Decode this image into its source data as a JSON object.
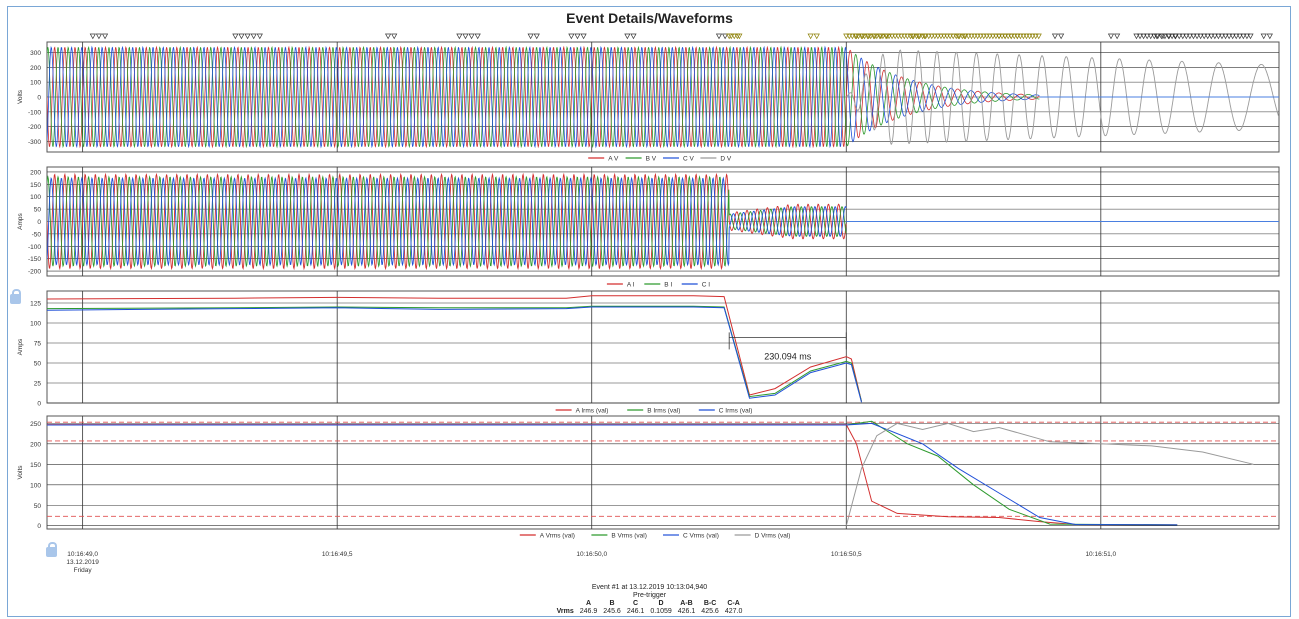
{
  "title": "Event Details/Waveforms",
  "colors": {
    "A": "#d32f2f",
    "B": "#2e9a2e",
    "C": "#1f4fd8",
    "D": "#9a9a9a",
    "threshold": "#e05050",
    "blue_line": "#4a7fe0"
  },
  "event_markers_icon": "triangle-down-icon",
  "lock_icon": "lock-icon",
  "x_axis": {
    "ticks": [
      {
        "t": 0.0,
        "label": "10:16:49,0"
      },
      {
        "t": 0.5,
        "label": "10:16:49,5"
      },
      {
        "t": 1.0,
        "label": "10:16:50,0"
      },
      {
        "t": 1.5,
        "label": "10:16:50,5"
      },
      {
        "t": 2.0,
        "label": "10:16:51,0"
      }
    ],
    "first_date": "13.12.2019",
    "first_day": "Friday",
    "range": [
      -0.07,
      2.35
    ]
  },
  "chart_data": [
    {
      "type": "line",
      "panel": "voltage-waveforms",
      "ylabel": "Volts",
      "ylim": [
        -370,
        370
      ],
      "yticks": [
        -300,
        -200,
        -100,
        0,
        100,
        200,
        300
      ],
      "grid": true,
      "legend_position": "bottom",
      "series": [
        {
          "name": "A V",
          "amplitude": 335,
          "end_t": 1.88,
          "decay_start_t": 1.5
        },
        {
          "name": "B V",
          "amplitude": 335,
          "end_t": 1.88,
          "decay_start_t": 1.5
        },
        {
          "name": "C V",
          "amplitude": 335,
          "end_t": 1.88,
          "decay_start_t": 1.5
        },
        {
          "name": "D V",
          "amplitude": 330,
          "end_t": 2.35,
          "start_t": 1.5
        }
      ]
    },
    {
      "type": "line",
      "panel": "current-waveforms",
      "ylabel": "Amps",
      "ylim": [
        -220,
        220
      ],
      "yticks": [
        -200,
        -150,
        -100,
        -50,
        0,
        50,
        100,
        150,
        200
      ],
      "grid": true,
      "legend_position": "bottom",
      "series": [
        {
          "name": "A I",
          "amplitude": 190,
          "drop_t": 1.27,
          "post_amplitude": 70,
          "end_t": 1.5
        },
        {
          "name": "B I",
          "amplitude": 180,
          "drop_t": 1.27,
          "post_amplitude": 60,
          "end_t": 1.5
        },
        {
          "name": "C I",
          "amplitude": 175,
          "drop_t": 1.27,
          "post_amplitude": 60,
          "end_t": 1.5
        }
      ]
    },
    {
      "type": "line",
      "panel": "current-rms",
      "ylabel": "Amps",
      "ylim": [
        0,
        140
      ],
      "yticks": [
        0,
        25,
        50,
        75,
        100,
        125
      ],
      "grid": true,
      "legend_position": "bottom",
      "annotation": {
        "text": "230.094 ms",
        "t_start": 1.27,
        "t_end": 1.5
      },
      "series": [
        {
          "name": "A Irms (val)",
          "points": [
            [
              -0.07,
              130
            ],
            [
              0.3,
              131
            ],
            [
              0.5,
              132
            ],
            [
              0.7,
              131
            ],
            [
              0.95,
              131
            ],
            [
              1.0,
              134
            ],
            [
              1.2,
              134
            ],
            [
              1.26,
              133
            ],
            [
              1.31,
              10
            ],
            [
              1.36,
              18
            ],
            [
              1.43,
              45
            ],
            [
              1.5,
              58
            ],
            [
              1.51,
              55
            ],
            [
              1.53,
              2
            ]
          ]
        },
        {
          "name": "B Irms (val)",
          "points": [
            [
              -0.07,
              118
            ],
            [
              0.3,
              119
            ],
            [
              0.5,
              120
            ],
            [
              0.7,
              119
            ],
            [
              0.95,
              119
            ],
            [
              1.0,
              121
            ],
            [
              1.2,
              121
            ],
            [
              1.26,
              120
            ],
            [
              1.31,
              8
            ],
            [
              1.36,
              12
            ],
            [
              1.43,
              40
            ],
            [
              1.5,
              52
            ],
            [
              1.51,
              50
            ],
            [
              1.53,
              2
            ]
          ]
        },
        {
          "name": "C Irms (val)",
          "points": [
            [
              -0.07,
              116
            ],
            [
              0.3,
              118
            ],
            [
              0.5,
              119
            ],
            [
              0.7,
              117
            ],
            [
              0.95,
              118
            ],
            [
              1.0,
              120
            ],
            [
              1.2,
              120
            ],
            [
              1.26,
              119
            ],
            [
              1.31,
              6
            ],
            [
              1.36,
              10
            ],
            [
              1.43,
              38
            ],
            [
              1.5,
              50
            ],
            [
              1.51,
              48
            ],
            [
              1.53,
              1
            ]
          ]
        }
      ]
    },
    {
      "type": "line",
      "panel": "voltage-rms",
      "ylabel": "Volts",
      "ylim": [
        -8,
        268
      ],
      "yticks": [
        0,
        50,
        100,
        150,
        200,
        250
      ],
      "grid": true,
      "legend_position": "bottom",
      "thresholds": [
        253,
        207,
        23
      ],
      "series": [
        {
          "name": "A Vrms (val)",
          "points": [
            [
              -0.07,
              247
            ],
            [
              1.5,
              247
            ],
            [
              1.52,
              200
            ],
            [
              1.55,
              60
            ],
            [
              1.6,
              30
            ],
            [
              1.7,
              22
            ],
            [
              1.8,
              20
            ],
            [
              1.88,
              10
            ],
            [
              1.95,
              3
            ],
            [
              2.15,
              2
            ]
          ]
        },
        {
          "name": "B Vrms (val)",
          "points": [
            [
              -0.07,
              246
            ],
            [
              1.5,
              246
            ],
            [
              1.55,
              255
            ],
            [
              1.62,
              200
            ],
            [
              1.68,
              170
            ],
            [
              1.75,
              100
            ],
            [
              1.82,
              40
            ],
            [
              1.9,
              4
            ],
            [
              2.15,
              2
            ]
          ]
        },
        {
          "name": "C Vrms (val)",
          "points": [
            [
              -0.07,
              246
            ],
            [
              1.5,
              246
            ],
            [
              1.55,
              250
            ],
            [
              1.65,
              200
            ],
            [
              1.72,
              140
            ],
            [
              1.8,
              80
            ],
            [
              1.88,
              20
            ],
            [
              1.95,
              3
            ],
            [
              2.15,
              2
            ]
          ]
        },
        {
          "name": "D Vrms (val)",
          "points": [
            [
              1.5,
              0
            ],
            [
              1.53,
              140
            ],
            [
              1.56,
              220
            ],
            [
              1.6,
              250
            ],
            [
              1.65,
              235
            ],
            [
              1.7,
              250
            ],
            [
              1.75,
              230
            ],
            [
              1.8,
              240
            ],
            [
              1.9,
              205
            ],
            [
              2.0,
              200
            ],
            [
              2.1,
              195
            ],
            [
              2.2,
              180
            ],
            [
              2.3,
              150
            ]
          ]
        }
      ]
    }
  ],
  "footer": {
    "event_line": "Event #1 at 13.12.2019 10:13:04,940",
    "pre_trigger": "Pre-trigger",
    "row_label": "Vrms",
    "columns": [
      "A",
      "B",
      "C",
      "D",
      "A-B",
      "B-C",
      "C-A"
    ],
    "values": [
      "246.9",
      "245.6",
      "246.1",
      "0.1059",
      "426.1",
      "425.6",
      "427.0"
    ]
  }
}
